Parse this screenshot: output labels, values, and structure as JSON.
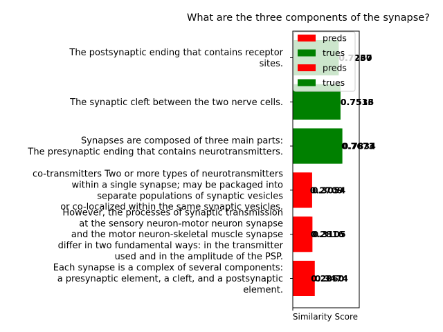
{
  "chart_data": {
    "type": "bar",
    "orientation": "horizontal",
    "title": "What are the three components of the synapse?",
    "xlabel": "Similarity Score",
    "ylabel": "",
    "xlim": [
      0,
      1.05
    ],
    "grid": false,
    "legend_position": "top-right",
    "colors": {
      "preds": "#ff0000",
      "trues": "#008000"
    },
    "categories": [
      {
        "text": "Each synapse is a complex of several components:\na presynaptic element, a cleft, and a postsynaptic\nelement.",
        "kind": "preds",
        "value_a": 0.3474,
        "value_b": 0.286,
        "label_a": "0.3474",
        "label_b": "0.2860"
      },
      {
        "text": "However, the processes of synaptic transmission\nat the sensory neuron-motor neuron synapse\nand the motor neuron-skeletal muscle synapse\ndiffer in two fundamental ways: in the transmitter\nused and in the amplitude of the PSP.",
        "kind": "preds",
        "value_a": 0.3105,
        "value_b": 0.2816,
        "label_a": "0.3105",
        "label_b": "0.2816"
      },
      {
        "text": "co-transmitters Two or more types of neurotransmitters\nwithin a single synapse; may be packaged into\nseparate populations of synaptic vesicles\nor co-localized within the same synaptic vesicles.",
        "kind": "preds",
        "value_a": 0.3054,
        "value_b": 0.2709,
        "label_a": "0.3054",
        "label_b": "0.2709"
      },
      {
        "text": "Synapses are composed of three main parts:\nThe presynaptic ending that contains neurotransmitters.",
        "kind": "trues",
        "value_a": 0.7834,
        "value_b": 0.7673,
        "label_a": "0.7834",
        "label_b": "0.7673"
      },
      {
        "text": "The synaptic cleft between the two nerve cells.",
        "kind": "trues",
        "value_a": 0.7536,
        "value_b": 0.7513,
        "label_a": "0.7536",
        "label_b": "0.7513"
      },
      {
        "text": "The postsynaptic ending that contains receptor\nsites.",
        "kind": "trues",
        "value_a": 0.726,
        "value_b": 0.7237,
        "label_a": "0.7260",
        "label_b": "0.7237"
      }
    ],
    "legend": [
      {
        "name": "preds",
        "color": "#ff0000"
      },
      {
        "name": "trues",
        "color": "#008000"
      },
      {
        "name": "preds",
        "color": "#ff0000"
      },
      {
        "name": "trues",
        "color": "#008000"
      }
    ]
  }
}
